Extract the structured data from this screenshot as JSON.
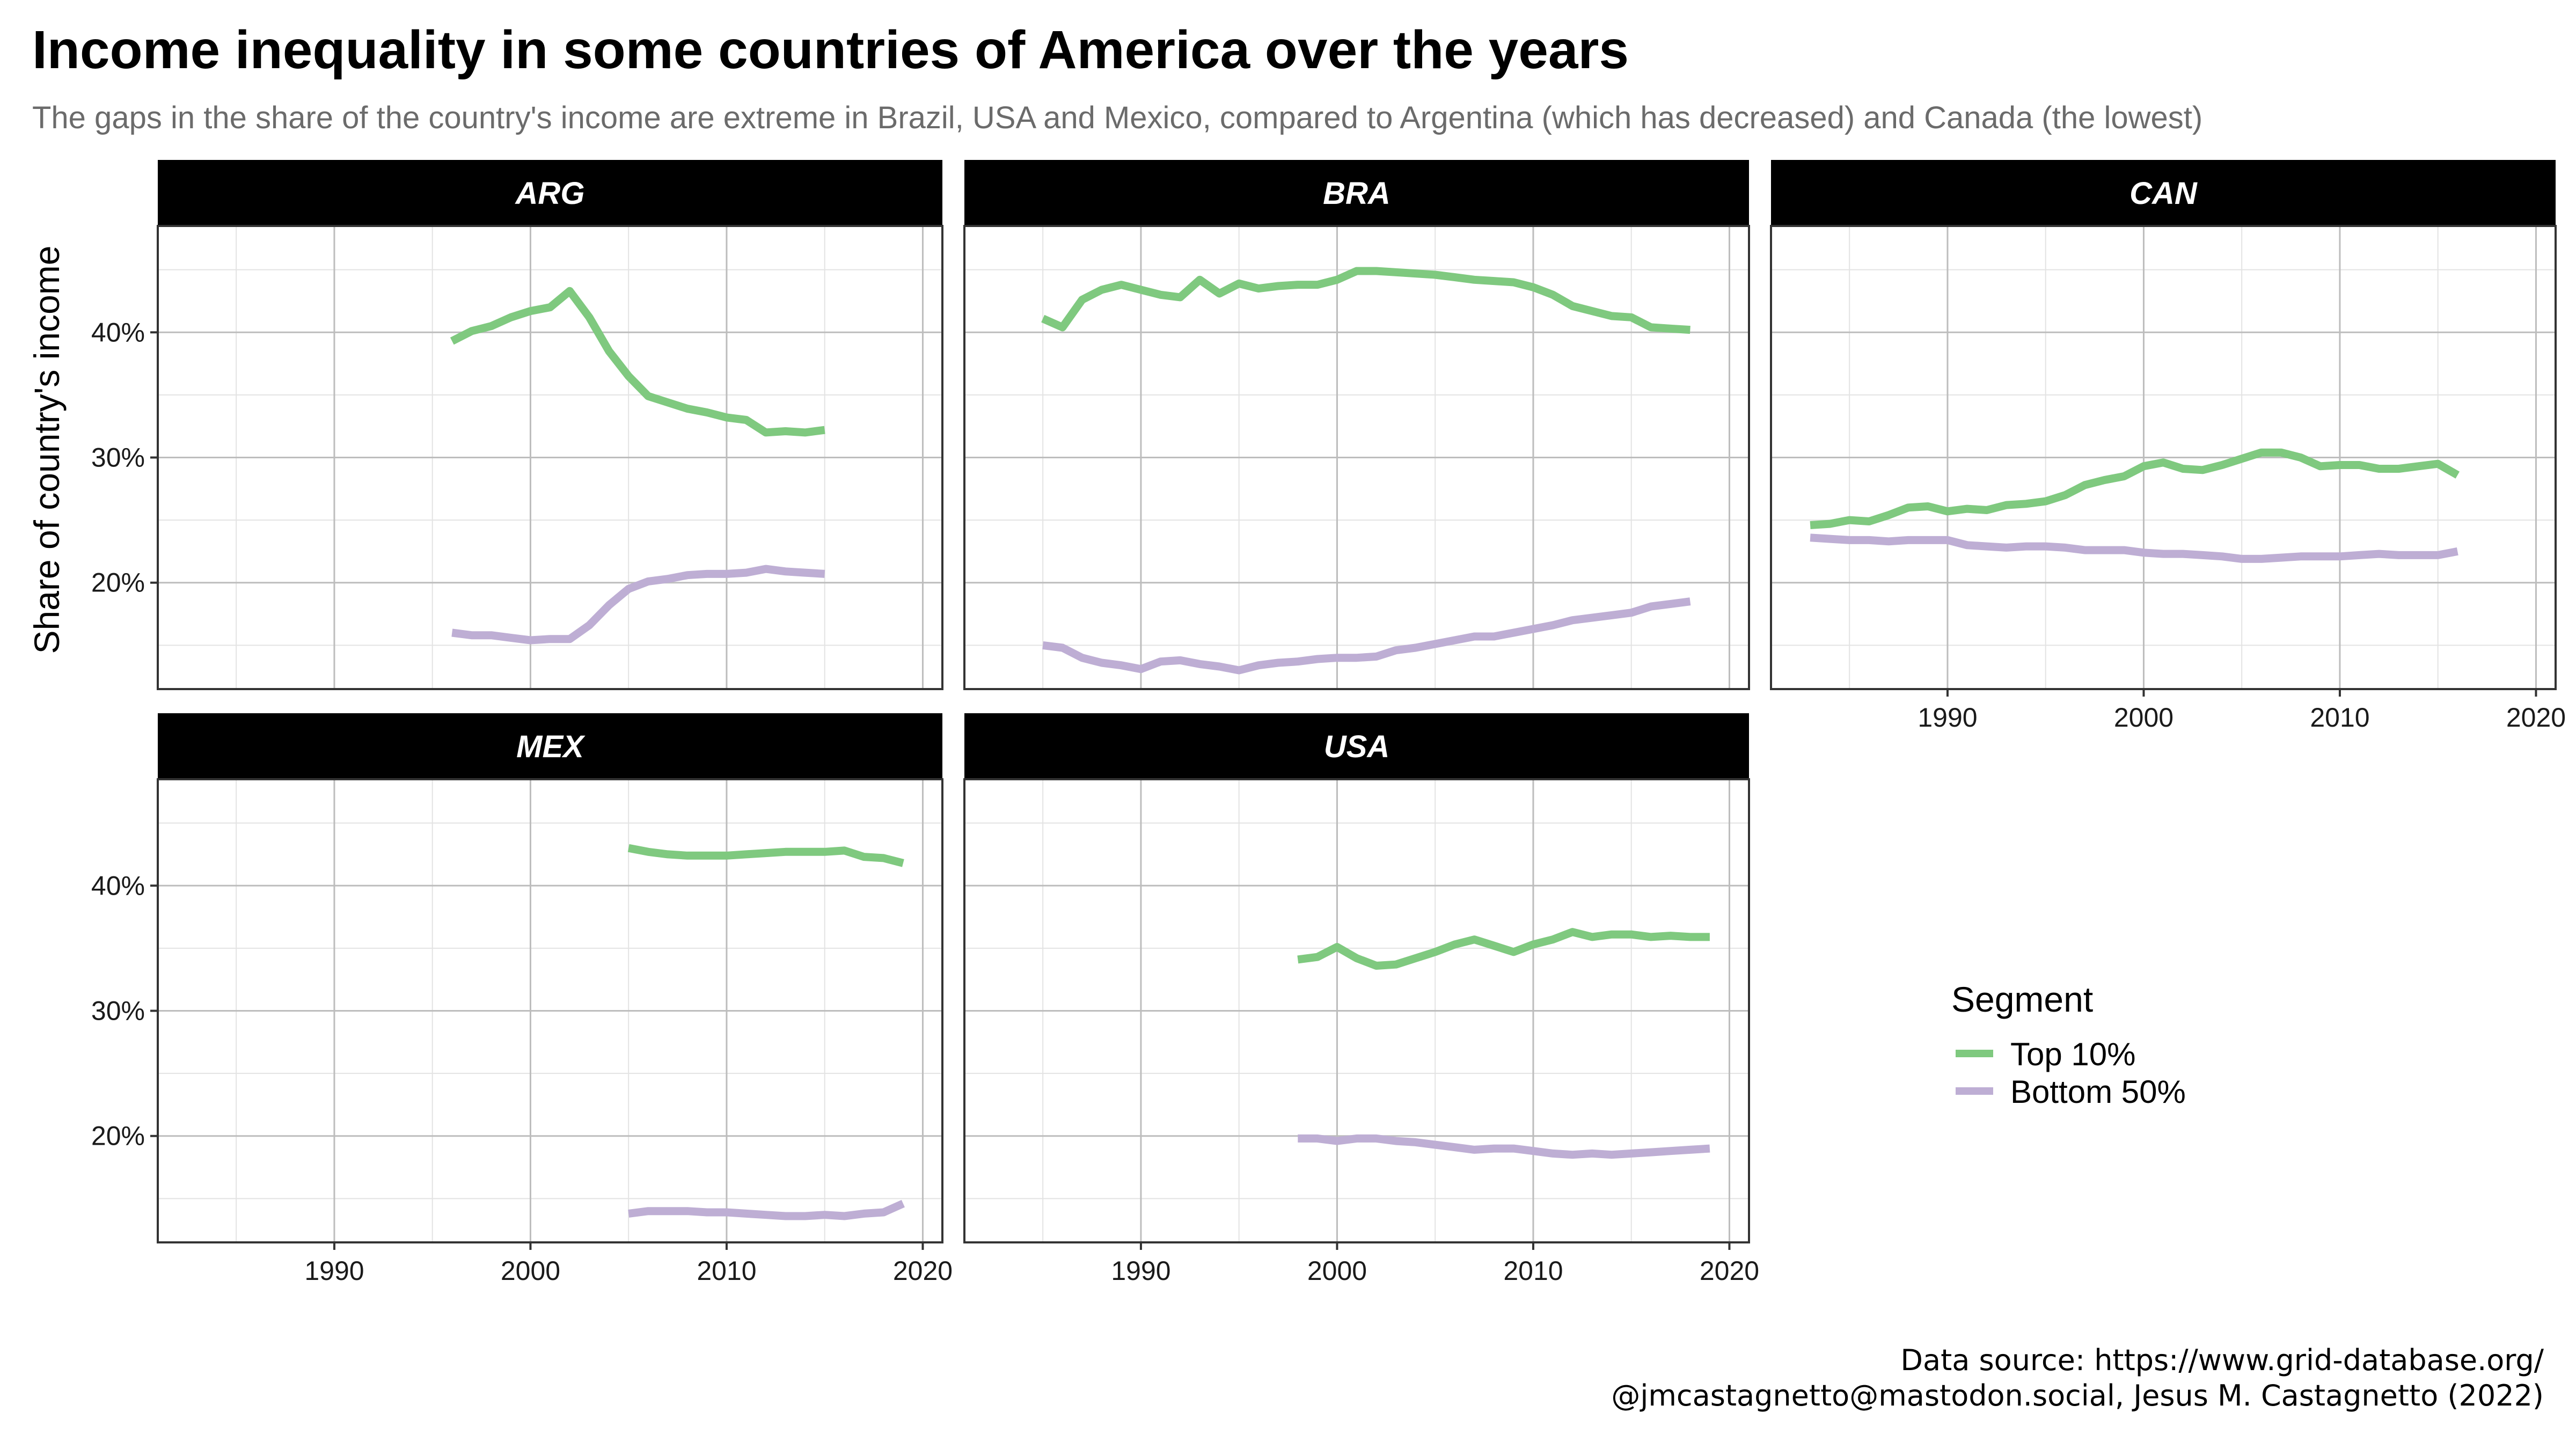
{
  "title": "Income inequality in some countries of America over the years",
  "subtitle": "The gaps in the share of the country's income are extreme in Brazil, USA and Mexico, compared to Argentina (which has decreased) and Canada (the lowest)",
  "caption": {
    "line1": "Data source: https://www.grid-database.org/",
    "line2": "@jmcastagnetto@mastodon.social, Jesus M. Castagnetto (2022)"
  },
  "colors": {
    "top10": "#7fc97f",
    "bottom50": "#beaed4",
    "strip": "#000000"
  },
  "chart_data": {
    "type": "line",
    "ylabel": "Share of country's income",
    "xlim": [
      1981,
      2021
    ],
    "ylim": [
      0.115,
      0.485
    ],
    "x_ticks": [
      1990,
      2000,
      2010,
      2020
    ],
    "y_ticks": [
      0.2,
      0.3,
      0.4
    ],
    "y_tick_labels": [
      "20%",
      "30%",
      "40%"
    ],
    "x_tick_labels": [
      "1990",
      "2000",
      "2010",
      "2020"
    ],
    "grid": true,
    "legend": {
      "title": "Segment",
      "position": "right",
      "entries": [
        {
          "label": "Top 10%",
          "color": "#7fc97f"
        },
        {
          "label": "Bottom 50%",
          "color": "#beaed4"
        }
      ]
    },
    "facets": [
      {
        "name": "ARG",
        "series": [
          {
            "name": "Top 10%",
            "x": [
              1996,
              1997,
              1998,
              1999,
              2000,
              2001,
              2002,
              2003,
              2004,
              2005,
              2006,
              2007,
              2008,
              2009,
              2010,
              2011,
              2012,
              2013,
              2014,
              2015
            ],
            "y": [
              0.393,
              0.401,
              0.405,
              0.412,
              0.417,
              0.42,
              0.433,
              0.412,
              0.385,
              0.365,
              0.349,
              0.344,
              0.339,
              0.336,
              0.332,
              0.33,
              0.32,
              0.321,
              0.32,
              0.322
            ]
          },
          {
            "name": "Bottom 50%",
            "x": [
              1996,
              1997,
              1998,
              1999,
              2000,
              2001,
              2002,
              2003,
              2004,
              2005,
              2006,
              2007,
              2008,
              2009,
              2010,
              2011,
              2012,
              2013,
              2014,
              2015
            ],
            "y": [
              0.16,
              0.158,
              0.158,
              0.156,
              0.154,
              0.155,
              0.155,
              0.166,
              0.182,
              0.195,
              0.201,
              0.203,
              0.206,
              0.207,
              0.207,
              0.208,
              0.211,
              0.209,
              0.208,
              0.207
            ]
          }
        ]
      },
      {
        "name": "BRA",
        "series": [
          {
            "name": "Top 10%",
            "x": [
              1985,
              1986,
              1987,
              1988,
              1989,
              1990,
              1991,
              1992,
              1993,
              1994,
              1995,
              1996,
              1997,
              1998,
              1999,
              2000,
              2001,
              2002,
              2003,
              2004,
              2005,
              2006,
              2007,
              2008,
              2009,
              2010,
              2011,
              2012,
              2013,
              2014,
              2015,
              2016,
              2017,
              2018
            ],
            "y": [
              0.411,
              0.404,
              0.426,
              0.434,
              0.438,
              0.434,
              0.43,
              0.428,
              0.442,
              0.431,
              0.439,
              0.435,
              0.437,
              0.438,
              0.438,
              0.442,
              0.449,
              0.449,
              0.448,
              0.447,
              0.446,
              0.444,
              0.442,
              0.441,
              0.44,
              0.436,
              0.43,
              0.421,
              0.417,
              0.413,
              0.412,
              0.404,
              0.403,
              0.402
            ]
          },
          {
            "name": "Bottom 50%",
            "x": [
              1985,
              1986,
              1987,
              1988,
              1989,
              1990,
              1991,
              1992,
              1993,
              1994,
              1995,
              1996,
              1997,
              1998,
              1999,
              2000,
              2001,
              2002,
              2003,
              2004,
              2005,
              2006,
              2007,
              2008,
              2009,
              2010,
              2011,
              2012,
              2013,
              2014,
              2015,
              2016,
              2017,
              2018
            ],
            "y": [
              0.15,
              0.148,
              0.14,
              0.136,
              0.134,
              0.131,
              0.137,
              0.138,
              0.135,
              0.133,
              0.13,
              0.134,
              0.136,
              0.137,
              0.139,
              0.14,
              0.14,
              0.141,
              0.146,
              0.148,
              0.151,
              0.154,
              0.157,
              0.157,
              0.16,
              0.163,
              0.166,
              0.17,
              0.172,
              0.174,
              0.176,
              0.181,
              0.183,
              0.185
            ]
          }
        ]
      },
      {
        "name": "CAN",
        "series": [
          {
            "name": "Top 10%",
            "x": [
              1983,
              1984,
              1985,
              1986,
              1987,
              1988,
              1989,
              1990,
              1991,
              1992,
              1993,
              1994,
              1995,
              1996,
              1997,
              1998,
              1999,
              2000,
              2001,
              2002,
              2003,
              2004,
              2005,
              2006,
              2007,
              2008,
              2009,
              2010,
              2011,
              2012,
              2013,
              2014,
              2015,
              2016
            ],
            "y": [
              0.246,
              0.247,
              0.25,
              0.249,
              0.254,
              0.26,
              0.261,
              0.257,
              0.259,
              0.258,
              0.262,
              0.263,
              0.265,
              0.27,
              0.278,
              0.282,
              0.285,
              0.293,
              0.296,
              0.291,
              0.29,
              0.294,
              0.299,
              0.304,
              0.304,
              0.3,
              0.293,
              0.294,
              0.294,
              0.291,
              0.291,
              0.293,
              0.295,
              0.286
            ]
          },
          {
            "name": "Bottom 50%",
            "x": [
              1983,
              1984,
              1985,
              1986,
              1987,
              1988,
              1989,
              1990,
              1991,
              1992,
              1993,
              1994,
              1995,
              1996,
              1997,
              1998,
              1999,
              2000,
              2001,
              2002,
              2003,
              2004,
              2005,
              2006,
              2007,
              2008,
              2009,
              2010,
              2011,
              2012,
              2013,
              2014,
              2015,
              2016
            ],
            "y": [
              0.236,
              0.235,
              0.234,
              0.234,
              0.233,
              0.234,
              0.234,
              0.234,
              0.23,
              0.229,
              0.228,
              0.229,
              0.229,
              0.228,
              0.226,
              0.226,
              0.226,
              0.224,
              0.223,
              0.223,
              0.222,
              0.221,
              0.219,
              0.219,
              0.22,
              0.221,
              0.221,
              0.221,
              0.222,
              0.223,
              0.222,
              0.222,
              0.222,
              0.225
            ]
          }
        ]
      },
      {
        "name": "MEX",
        "series": [
          {
            "name": "Top 10%",
            "x": [
              2005,
              2006,
              2007,
              2008,
              2009,
              2010,
              2011,
              2012,
              2013,
              2014,
              2015,
              2016,
              2017,
              2018,
              2019
            ],
            "y": [
              0.43,
              0.427,
              0.425,
              0.424,
              0.424,
              0.424,
              0.425,
              0.426,
              0.427,
              0.427,
              0.427,
              0.428,
              0.423,
              0.422,
              0.418
            ]
          },
          {
            "name": "Bottom 50%",
            "x": [
              2005,
              2006,
              2007,
              2008,
              2009,
              2010,
              2011,
              2012,
              2013,
              2014,
              2015,
              2016,
              2017,
              2018,
              2019
            ],
            "y": [
              0.138,
              0.14,
              0.14,
              0.14,
              0.139,
              0.139,
              0.138,
              0.137,
              0.136,
              0.136,
              0.137,
              0.136,
              0.138,
              0.139,
              0.146
            ]
          }
        ]
      },
      {
        "name": "USA",
        "series": [
          {
            "name": "Top 10%",
            "x": [
              1998,
              1999,
              2000,
              2001,
              2002,
              2003,
              2004,
              2005,
              2006,
              2007,
              2008,
              2009,
              2010,
              2011,
              2012,
              2013,
              2014,
              2015,
              2016,
              2017,
              2018,
              2019
            ],
            "y": [
              0.341,
              0.343,
              0.351,
              0.342,
              0.336,
              0.337,
              0.342,
              0.347,
              0.353,
              0.357,
              0.352,
              0.347,
              0.353,
              0.357,
              0.363,
              0.359,
              0.361,
              0.361,
              0.359,
              0.36,
              0.359,
              0.359
            ]
          },
          {
            "name": "Bottom 50%",
            "x": [
              1998,
              1999,
              2000,
              2001,
              2002,
              2003,
              2004,
              2005,
              2006,
              2007,
              2008,
              2009,
              2010,
              2011,
              2012,
              2013,
              2014,
              2015,
              2016,
              2017,
              2018,
              2019
            ],
            "y": [
              0.198,
              0.198,
              0.196,
              0.198,
              0.198,
              0.196,
              0.195,
              0.193,
              0.191,
              0.189,
              0.19,
              0.19,
              0.188,
              0.186,
              0.185,
              0.186,
              0.185,
              0.186,
              0.187,
              0.188,
              0.189,
              0.19
            ]
          }
        ]
      }
    ]
  }
}
